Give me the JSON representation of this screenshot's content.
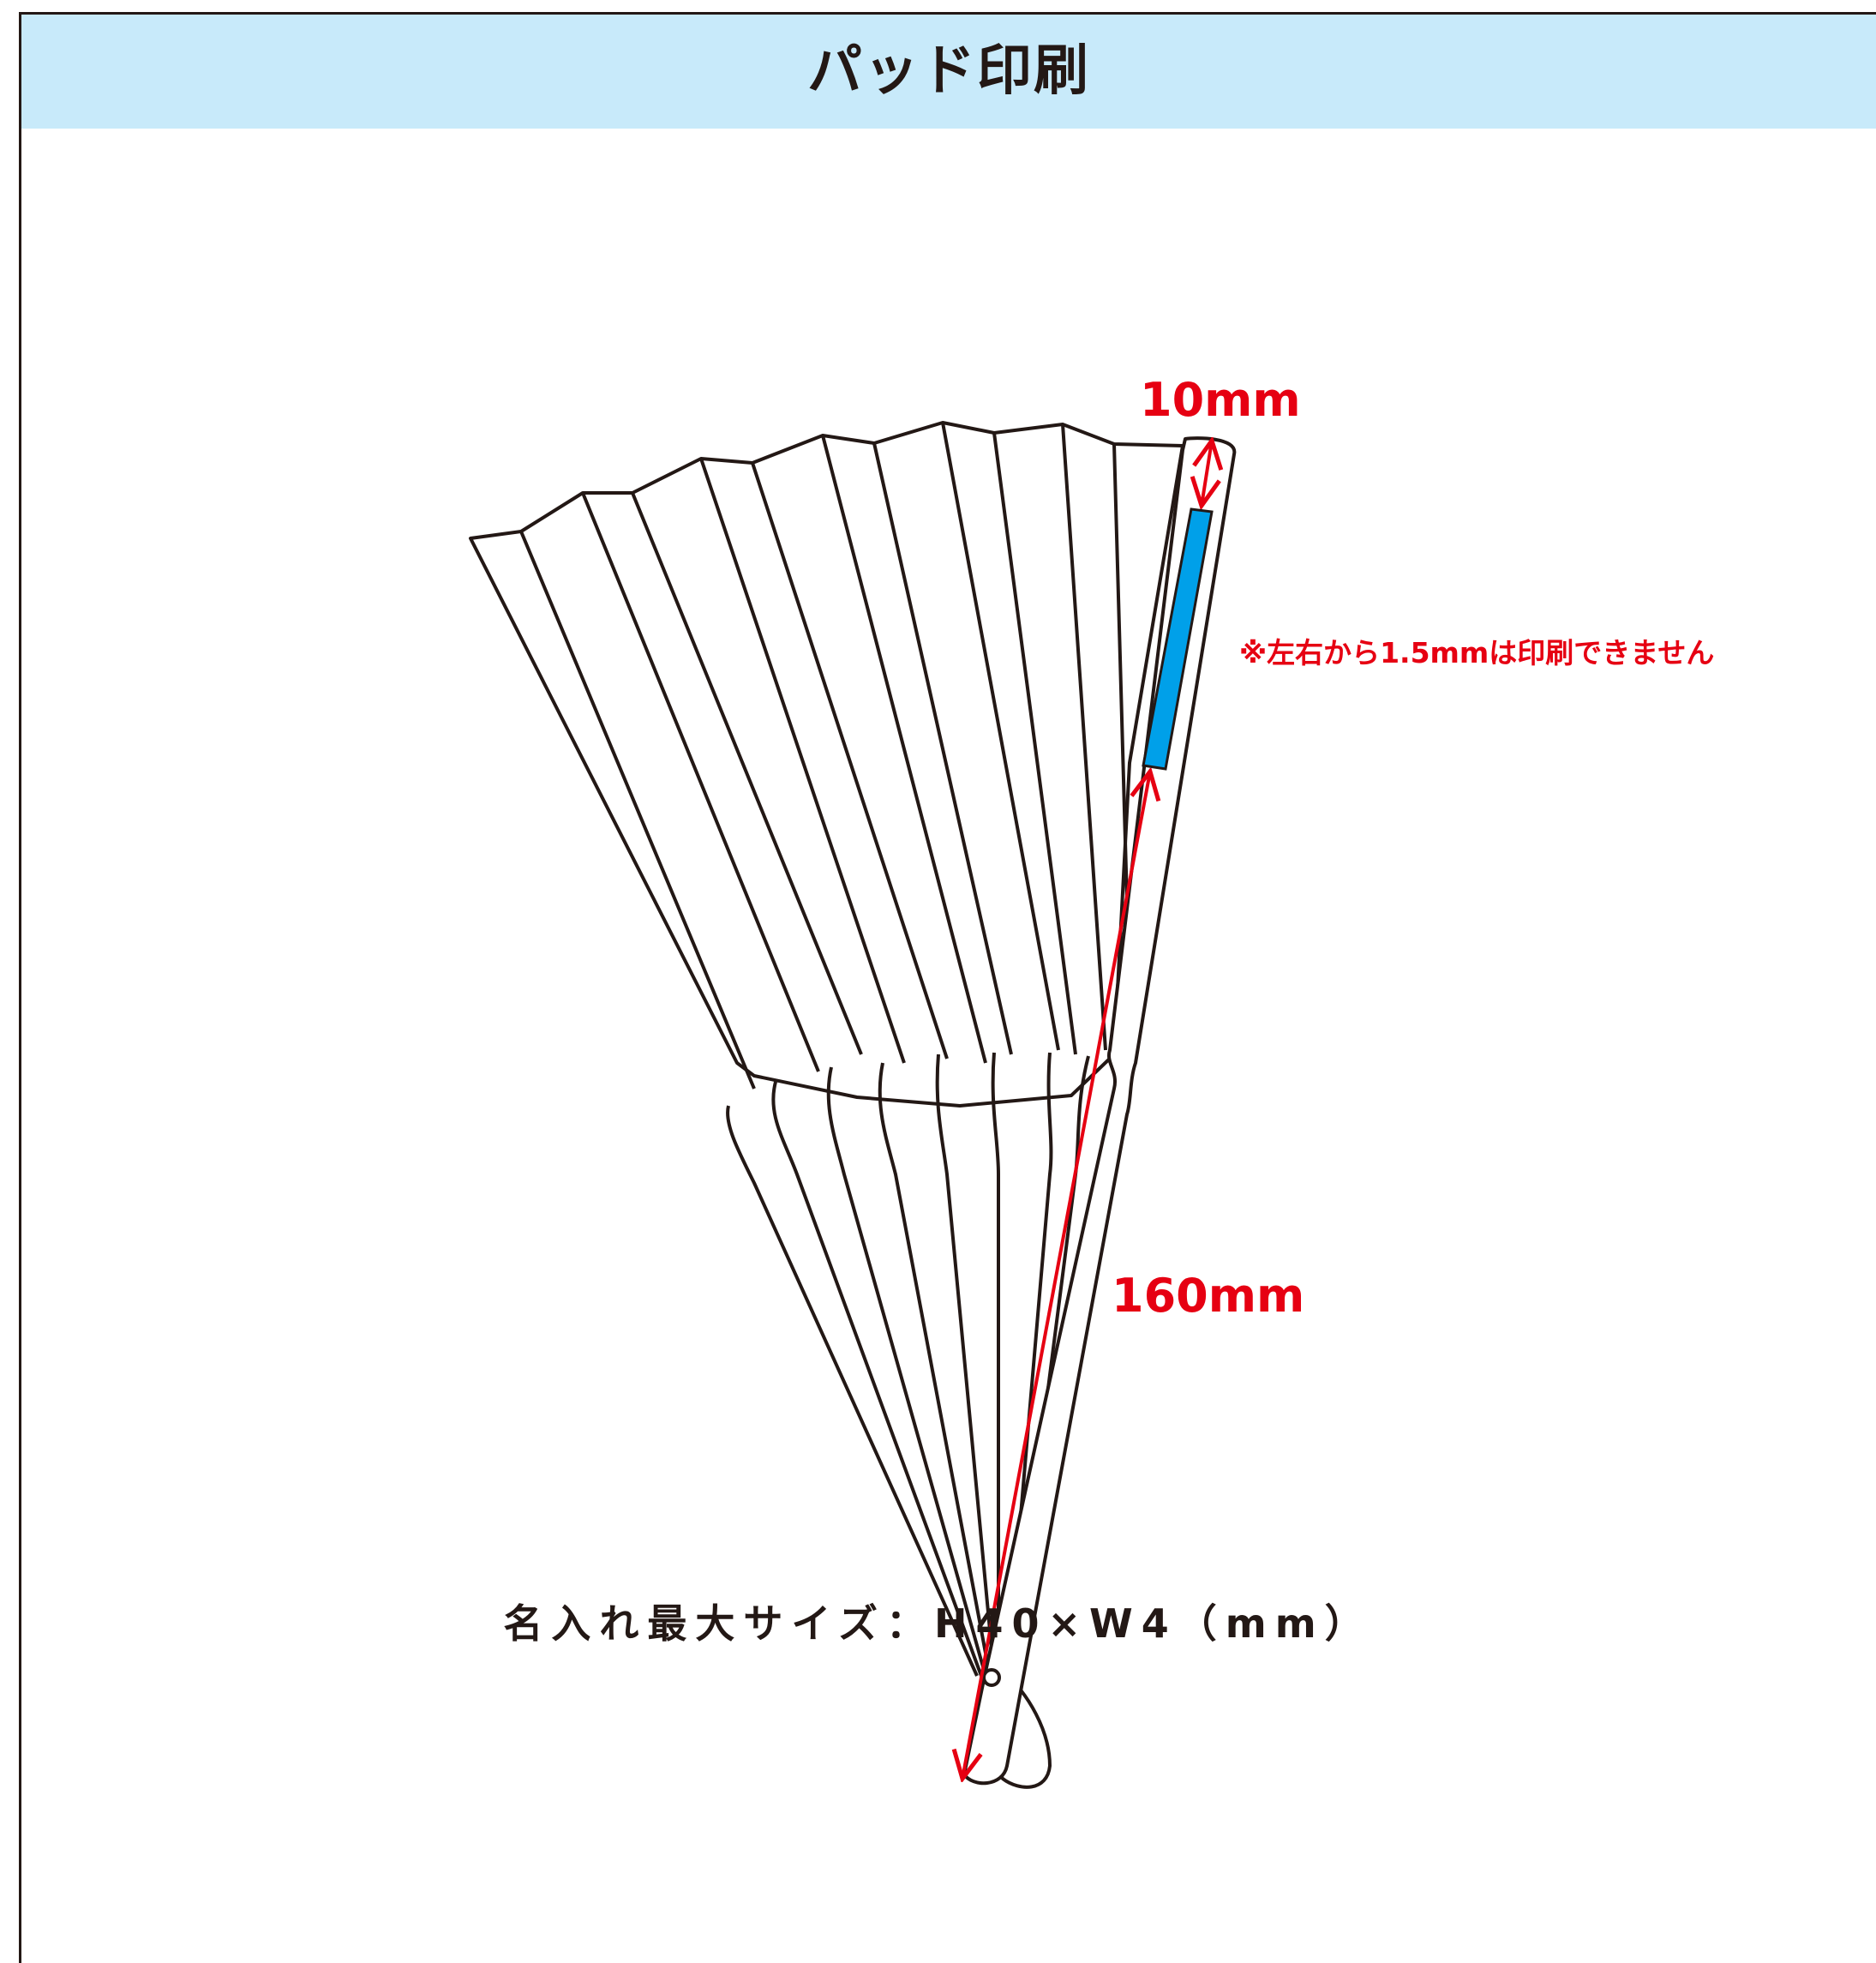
{
  "title": "パッド印刷",
  "annotations": {
    "top_dimension": "10mm",
    "length_dimension": "160mm",
    "note": "※左右から1.5mmは印刷できません"
  },
  "footer": "名入れ最大サイズ：H40×W4（mm）",
  "colors": {
    "header_bg": "#c8eafa",
    "print_area": "#00a0e9",
    "dimension": "#e60012",
    "outline": "#231815"
  }
}
